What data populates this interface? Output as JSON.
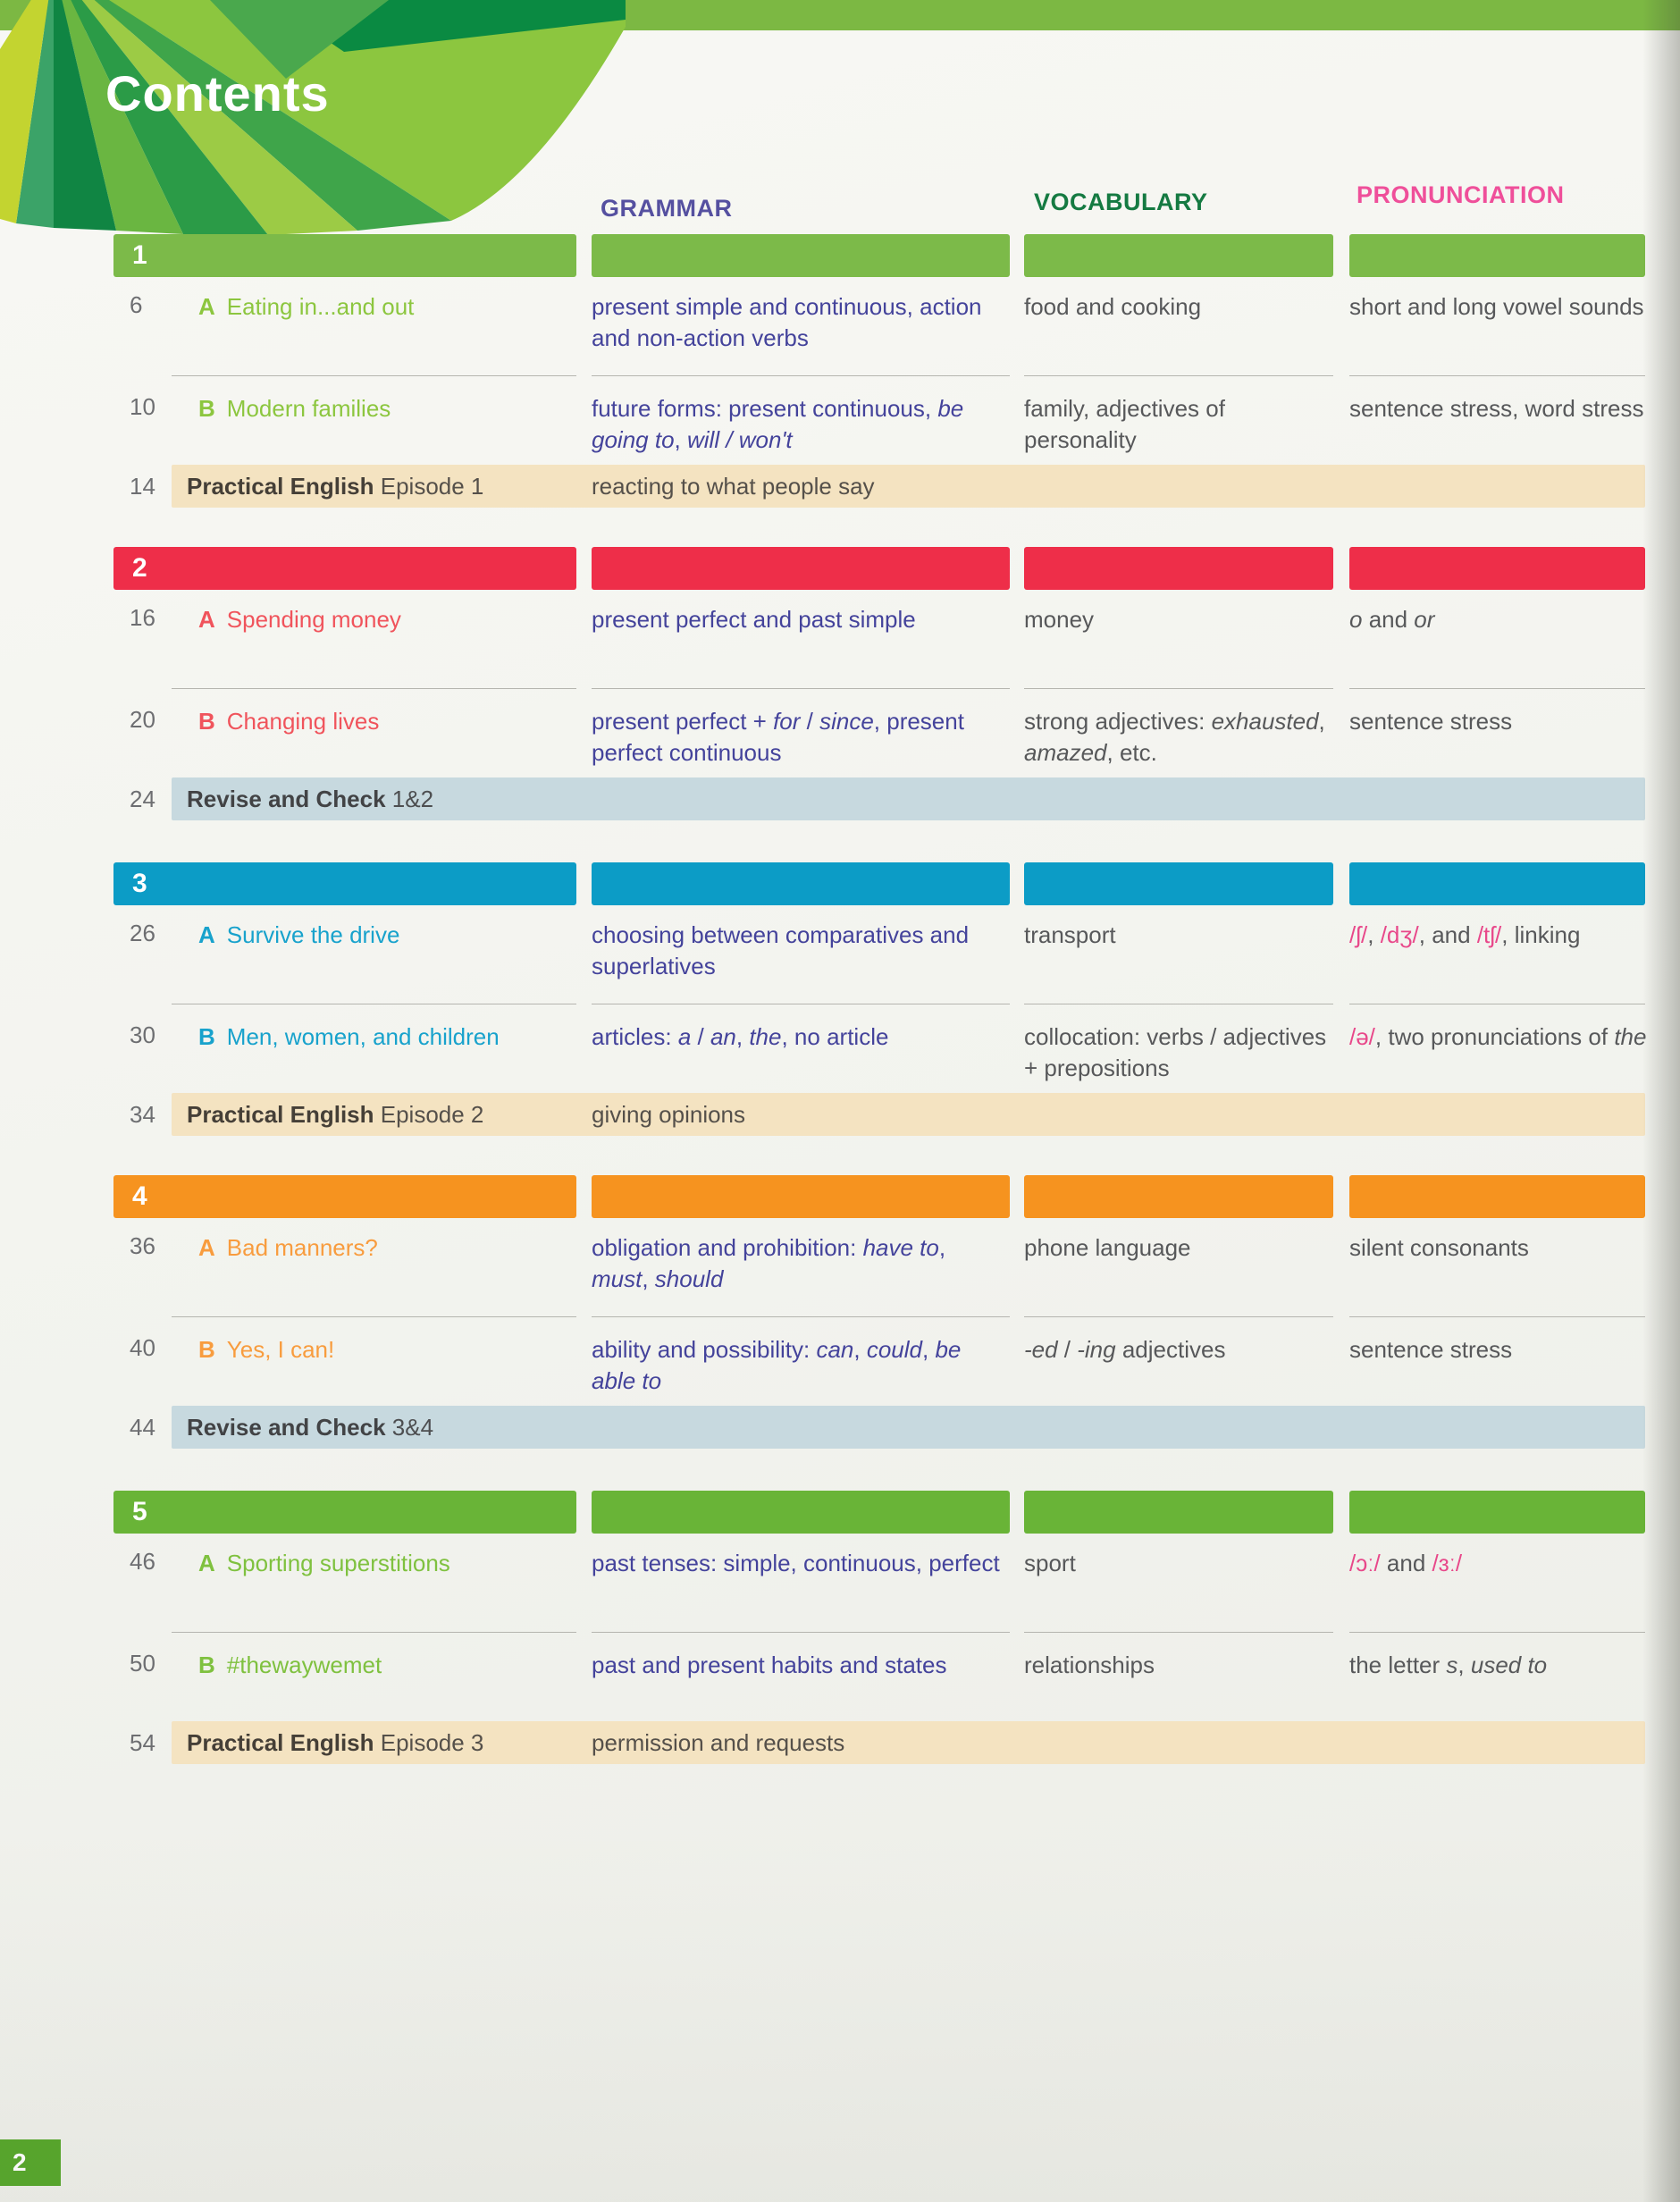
{
  "page": {
    "title": "Contents",
    "page_number": "2"
  },
  "columns": {
    "grammar": "GRAMMAR",
    "vocabulary": "VOCABULARY",
    "pronunciation": "PRONUNCIATION"
  },
  "theme": {
    "banner_green": "#7cb843",
    "badge_green": "#55a629",
    "grammar_header": "#5550a0",
    "vocabulary_header": "#157a42",
    "pronunciation_header": "#ef4f9a",
    "grammar_text": "#44439b",
    "body_text": "#57585a",
    "phonetic_pink": "#e8488a",
    "practical_bg": "#f4e3c1",
    "revise_bg": "#c7d9df"
  },
  "sections": [
    {
      "number": "1",
      "color": "#7cba49",
      "title_color": "#8cc63f",
      "rows": [
        {
          "page": "6",
          "letter": "A",
          "title": "Eating in...and out",
          "grammar": "present simple and continuous, action and non-action verbs",
          "vocabulary": "food and cooking",
          "pronunciation": "short and long vowel sounds"
        },
        {
          "page": "10",
          "letter": "B",
          "title": "Modern families",
          "grammar": "future forms: present continuous, <i>be going to</i>, <i>will / won't</i>",
          "vocabulary": "family, adjectives of personality",
          "pronunciation": "sentence stress, word stress"
        }
      ],
      "footer": {
        "type": "practical",
        "page": "14",
        "label": "<b>Practical English</b> Episode 1",
        "detail": "reacting to what people say"
      }
    },
    {
      "number": "2",
      "color": "#ee2e49",
      "title_color": "#f0545c",
      "rows": [
        {
          "page": "16",
          "letter": "A",
          "title": "Spending money",
          "grammar": "present perfect and past simple",
          "vocabulary": "money",
          "pronunciation": "<i>o</i> and <i>or</i>"
        },
        {
          "page": "20",
          "letter": "B",
          "title": "Changing lives",
          "grammar": "present perfect + <i>for</i> / <i>since</i>, present perfect continuous",
          "vocabulary": "strong adjectives: <i>exhausted</i>, <i>amazed</i>, etc.",
          "pronunciation": "sentence stress"
        }
      ],
      "footer": {
        "type": "revise",
        "page": "24",
        "label": "<b>Revise and Check</b> 1&amp;2",
        "detail": ""
      }
    },
    {
      "number": "3",
      "color": "#0c9cc6",
      "title_color": "#18a2cc",
      "rows": [
        {
          "page": "26",
          "letter": "A",
          "title": "Survive the drive",
          "grammar": "choosing between comparatives and superlatives",
          "vocabulary": "transport",
          "pronunciation": "<ph>/ʃ/</ph>, <ph>/dʒ/</ph>, and <ph>/tʃ/</ph>, linking"
        },
        {
          "page": "30",
          "letter": "B",
          "title": "Men, women, and children",
          "grammar": "articles: <i>a</i> / <i>an</i>, <i>the</i>, no article",
          "vocabulary": "collocation: verbs / adjectives + prepositions",
          "pronunciation": "<ph>/ə/</ph>, two pronunciations of <i>the</i>"
        }
      ],
      "footer": {
        "type": "practical",
        "page": "34",
        "label": "<b>Practical English</b> Episode 2",
        "detail": "giving opinions"
      }
    },
    {
      "number": "4",
      "color": "#f6931f",
      "title_color": "#f89c3e",
      "rows": [
        {
          "page": "36",
          "letter": "A",
          "title": "Bad manners?",
          "grammar": "obligation and prohibition: <i>have to</i>, <i>must</i>, <i>should</i>",
          "vocabulary": "phone language",
          "pronunciation": "silent consonants"
        },
        {
          "page": "40",
          "letter": "B",
          "title": "Yes, I can!",
          "grammar": "ability and possibility: <i>can</i>, <i>could</i>, <i>be able to</i>",
          "vocabulary": "<i>-ed</i> / <i>-ing</i> adjectives",
          "pronunciation": "sentence stress"
        }
      ],
      "footer": {
        "type": "revise",
        "page": "44",
        "label": "<b>Revise and Check</b> 3&amp;4",
        "detail": ""
      }
    },
    {
      "number": "5",
      "color": "#69b437",
      "title_color": "#7fc13f",
      "rows": [
        {
          "page": "46",
          "letter": "A",
          "title": "Sporting superstitions",
          "grammar": "past tenses: simple, continuous, perfect",
          "vocabulary": "sport",
          "pronunciation": "<ph>/ɔː/</ph> and <ph>/ɜː/</ph>"
        },
        {
          "page": "50",
          "letter": "B",
          "title": "#thewaywemet",
          "grammar": "past and present habits and states",
          "vocabulary": "relationships",
          "pronunciation": "the letter <i>s</i>, <i>used to</i>"
        }
      ],
      "footer": {
        "type": "practical",
        "page": "54",
        "label": "<b>Practical English</b> Episode 3",
        "detail": "permission and requests"
      }
    }
  ]
}
